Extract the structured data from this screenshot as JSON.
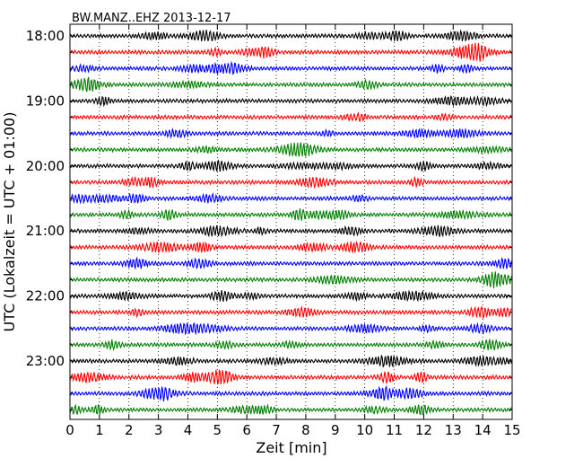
{
  "chart_data": {
    "type": "line",
    "title": "BW.MANZ..EHZ 2013-12-17",
    "xlabel": "Zeit  [min]",
    "ylabel": "UTC (Lokalzeit = UTC + 01:00)",
    "xlim": [
      0,
      15
    ],
    "x_ticks": [
      "0",
      "1",
      "2",
      "3",
      "4",
      "5",
      "6",
      "7",
      "8",
      "9",
      "10",
      "11",
      "12",
      "13",
      "14",
      "15"
    ],
    "y_ticks": [
      "18:00",
      "19:00",
      "20:00",
      "21:00",
      "22:00",
      "23:00"
    ],
    "trace_colors": [
      "#000000",
      "#ff0000",
      "#0000ff",
      "#007f00"
    ],
    "trace_count": 24,
    "grid_x": true,
    "grid_style": "dotted"
  }
}
